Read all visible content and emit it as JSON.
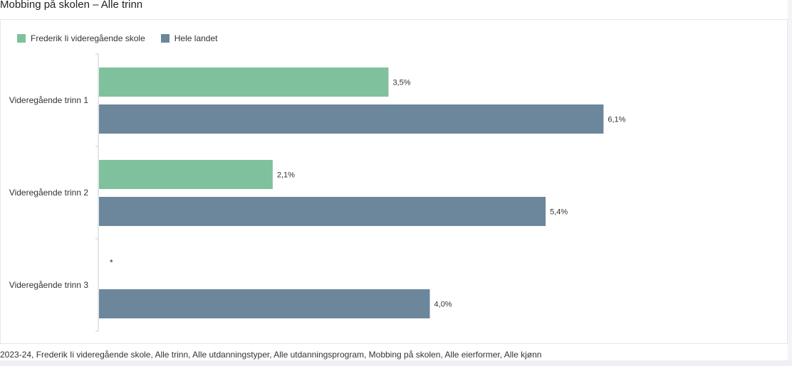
{
  "title": "Mobbing på skolen – Alle trinn",
  "caption": "2023-24, Frederik Ii videregående skole, Alle trinn, Alle utdanningstyper, Alle utdanningsprogram, Mobbing på skolen, Alle eierformer, Alle kjønn",
  "colors": {
    "school": "#7fc19c",
    "national": "#6c879c",
    "axis": "#c8ccd2"
  },
  "chart_data": {
    "type": "bar",
    "orientation": "horizontal",
    "categories": [
      "Videregående trinn 1",
      "Videregående trinn 2",
      "Videregående trinn 3"
    ],
    "series": [
      {
        "name": "Frederik Ii videregående skole",
        "values": [
          3.5,
          2.1,
          null
        ],
        "labels": [
          "3,5%",
          "2,1%",
          "*"
        ]
      },
      {
        "name": "Hele landet",
        "values": [
          6.1,
          5.4,
          4.0
        ],
        "labels": [
          "6,1%",
          "5,4%",
          "4,0%"
        ]
      }
    ],
    "xlim": [
      0,
      7.75
    ],
    "legend": "top-left",
    "grid": false
  }
}
